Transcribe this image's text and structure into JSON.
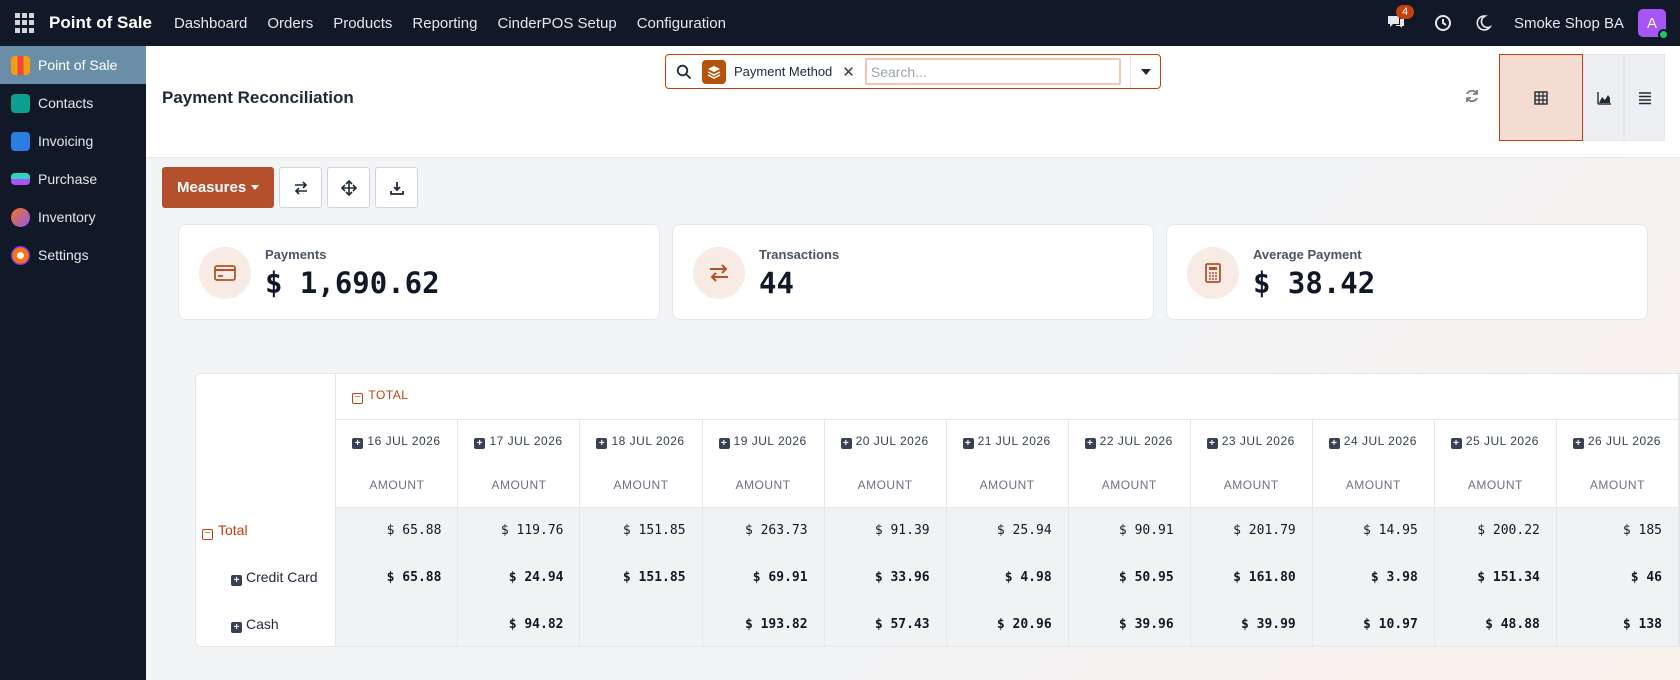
{
  "topbar": {
    "brand": "Point of Sale",
    "nav": [
      "Dashboard",
      "Orders",
      "Products",
      "Reporting",
      "CinderPOS Setup",
      "Configuration"
    ],
    "chat_badge": "4",
    "company": "Smoke Shop BA",
    "avatar_letter": "A"
  },
  "sidebar": {
    "items": [
      {
        "label": "Point of Sale",
        "icon": "pos-icon",
        "active": true
      },
      {
        "label": "Contacts",
        "icon": "contacts-icon"
      },
      {
        "label": "Invoicing",
        "icon": "invoicing-icon"
      },
      {
        "label": "Purchase",
        "icon": "purchase-icon"
      },
      {
        "label": "Inventory",
        "icon": "inventory-icon"
      },
      {
        "label": "Settings",
        "icon": "settings-icon"
      }
    ]
  },
  "control": {
    "title": "Payment Reconciliation",
    "facet_label": "Payment Method",
    "search_placeholder": "Search...",
    "measures_label": "Measures"
  },
  "kpis": [
    {
      "label": "Payments",
      "value": "$ 1,690.62",
      "icon": "credit-card-icon"
    },
    {
      "label": "Transactions",
      "value": "44",
      "icon": "exchange-icon"
    },
    {
      "label": "Average Payment",
      "value": "$ 38.42",
      "icon": "calculator-icon"
    }
  ],
  "pivot": {
    "total_header": "TOTAL",
    "measure_label": "AMOUNT",
    "dates": [
      "16 JUL 2026",
      "17 JUL 2026",
      "18 JUL 2026",
      "19 JUL 2026",
      "20 JUL 2026",
      "21 JUL 2026",
      "22 JUL 2026",
      "23 JUL 2026",
      "24 JUL 2026",
      "25 JUL 2026",
      "26 JUL 2026"
    ],
    "rows": [
      {
        "label": "Total",
        "kind": "total",
        "values": [
          "$ 65.88",
          "$ 119.76",
          "$ 151.85",
          "$ 263.73",
          "$ 91.39",
          "$ 25.94",
          "$ 90.91",
          "$ 201.79",
          "$ 14.95",
          "$ 200.22",
          "$ 185"
        ]
      },
      {
        "label": "Credit Card",
        "kind": "sub",
        "values": [
          "$ 65.88",
          "$ 24.94",
          "$ 151.85",
          "$ 69.91",
          "$ 33.96",
          "$ 4.98",
          "$ 50.95",
          "$ 161.80",
          "$ 3.98",
          "$ 151.34",
          "$ 46"
        ]
      },
      {
        "label": "Cash",
        "kind": "sub",
        "values": [
          "",
          "$ 94.82",
          "",
          "$ 193.82",
          "$ 57.43",
          "$ 20.96",
          "$ 39.96",
          "$ 39.99",
          "$ 10.97",
          "$ 48.88",
          "$ 138"
        ]
      }
    ]
  },
  "colors": {
    "accent": "#b5502c",
    "navbar": "#111827",
    "active_sidebar": "#6b8ea8"
  }
}
